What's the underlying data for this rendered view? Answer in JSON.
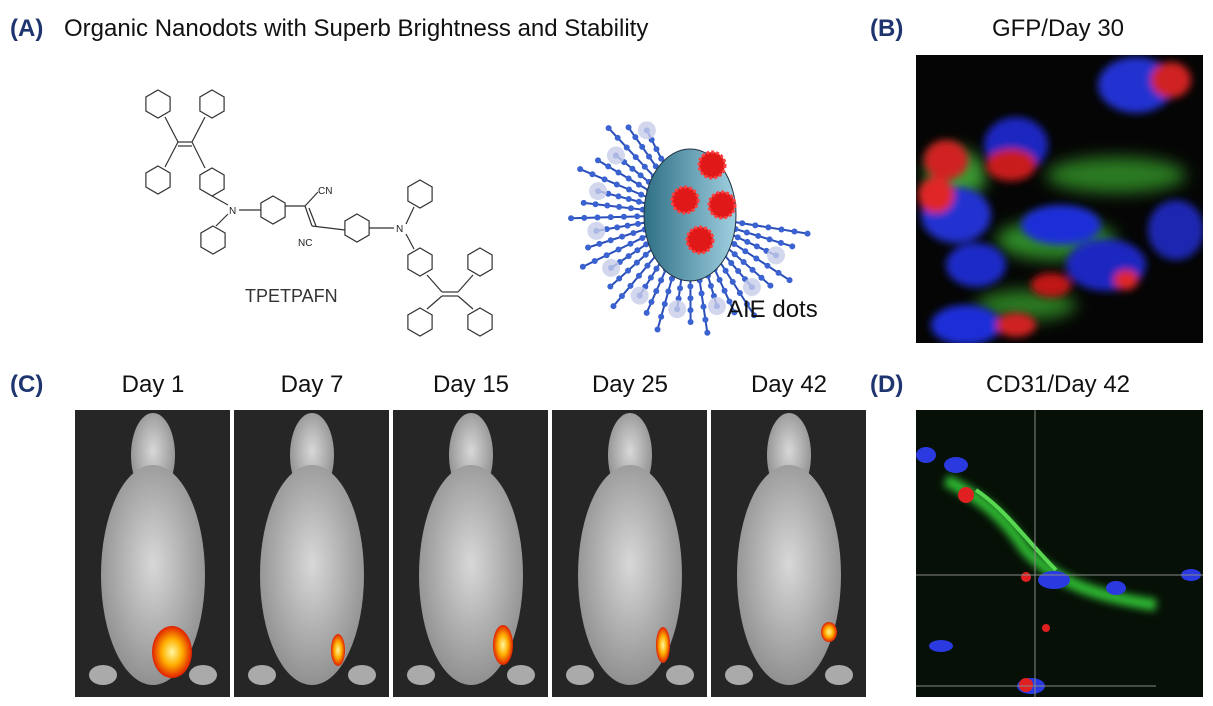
{
  "panel_a": {
    "label": "(A)",
    "title": "Organic Nanodots with Superb Brightness and Stability",
    "molecule": {
      "name": "TPETPAFN",
      "atoms": [
        "CN",
        "NC",
        "N",
        "N"
      ]
    },
    "nanodot_label": "AIE dots"
  },
  "panel_b": {
    "label": "(B)",
    "title": "GFP/Day 30"
  },
  "panel_c": {
    "label": "(C)",
    "days": [
      "Day 1",
      "Day 7",
      "Day 15",
      "Day 25",
      "Day 42"
    ]
  },
  "panel_d": {
    "label": "(D)",
    "title": "CD31/Day 42"
  }
}
